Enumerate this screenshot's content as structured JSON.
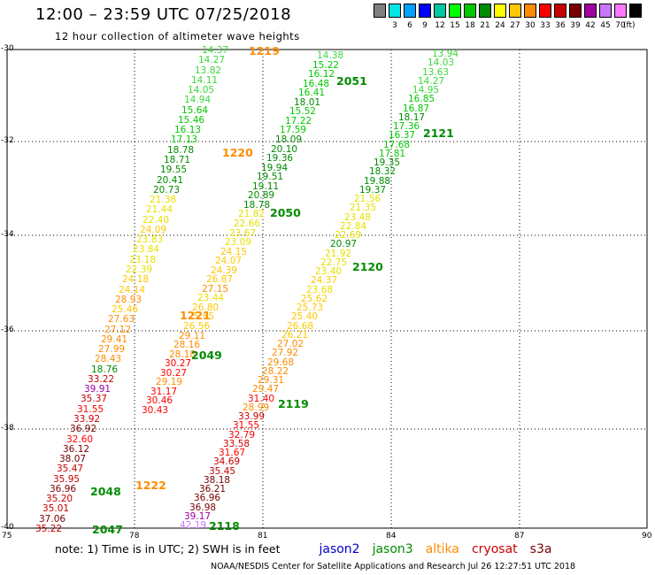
{
  "title": "12:00 – 23:59 UTC 07/25/2018",
  "subtitle": "12 hour collection of altimeter wave heights",
  "legend": {
    "unit": "(ft)",
    "bins": [
      {
        "label": "",
        "color": "#7f7f7f"
      },
      {
        "label": "3",
        "color": "#00e5e5"
      },
      {
        "label": "6",
        "color": "#00a0ff"
      },
      {
        "label": "9",
        "color": "#0000ff"
      },
      {
        "label": "12",
        "color": "#00c8a0"
      },
      {
        "label": "15",
        "color": "#00ff00"
      },
      {
        "label": "18",
        "color": "#00c800"
      },
      {
        "label": "21",
        "color": "#008c00"
      },
      {
        "label": "24",
        "color": "#ffff00"
      },
      {
        "label": "27",
        "color": "#ffc800"
      },
      {
        "label": "30",
        "color": "#ff8c00"
      },
      {
        "label": "33",
        "color": "#ff0000"
      },
      {
        "label": "36",
        "color": "#c80000"
      },
      {
        "label": "39",
        "color": "#780000"
      },
      {
        "label": "42",
        "color": "#a000a0"
      },
      {
        "label": "45",
        "color": "#c878ff"
      },
      {
        "label": "70",
        "color": "#ff78ff"
      },
      {
        "label": "",
        "color": "#000000"
      }
    ]
  },
  "axes": {
    "y_ticks": [
      "-30",
      "-32",
      "-34",
      "-36",
      "-38",
      "-40"
    ],
    "x_ticks": [
      "75",
      "78",
      "81",
      "84",
      "87",
      "90"
    ]
  },
  "passes": [
    {
      "id": "1219",
      "color": "#ff8c00"
    },
    {
      "id": "2051",
      "color": "#008c00"
    },
    {
      "id": "2121",
      "color": "#008c00"
    },
    {
      "id": "1220",
      "color": "#ff8c00"
    },
    {
      "id": "2050",
      "color": "#008c00"
    },
    {
      "id": "2120",
      "color": "#008c00"
    },
    {
      "id": "1221",
      "color": "#ff8c00"
    },
    {
      "id": "2049",
      "color": "#008c00"
    },
    {
      "id": "2119",
      "color": "#008c00"
    },
    {
      "id": "1222",
      "color": "#ff8c00"
    },
    {
      "id": "2048",
      "color": "#008c00"
    },
    {
      "id": "2047",
      "color": "#008c00"
    },
    {
      "id": "2118",
      "color": "#008c00"
    }
  ],
  "tracks": {
    "a": [
      "14.37",
      "14.27",
      "13.82",
      "14.11",
      "14.05",
      "14.94",
      "15.64",
      "15.46",
      "16.13",
      "17.13",
      "18.78",
      "18.71",
      "19.55",
      "20.41",
      "20.73",
      "21.38",
      "21.44",
      "22.40",
      "24.09",
      "23.83",
      "23.84",
      "23.18",
      "22.39",
      "24.18",
      "24.14",
      "28.93",
      "25.46",
      "27.63",
      "27.12",
      "29.41",
      "27.99",
      "28.43",
      "18.76",
      "33.22",
      "39.91",
      "35.37",
      "31.55",
      "33.92",
      "36.92",
      "32.60",
      "36.12",
      "38.07",
      "35.47",
      "35.95",
      "36.96",
      "35.20",
      "35.01",
      "37.06",
      "35.22"
    ],
    "b": [
      "14.38",
      "15.22",
      "16.12",
      "16.48",
      "16.41",
      "18.01",
      "15.52",
      "17.22",
      "17.59",
      "18.09",
      "20.10",
      "19.36",
      "19.94",
      "19.51",
      "19.11",
      "20.89",
      "18.78",
      "21.82",
      "22.66",
      "23.67",
      "23.09",
      "24.15",
      "24.07",
      "24.39",
      "26.87",
      "27.15",
      "23.44",
      "26.80",
      "25.85",
      "26.56",
      "29.11",
      "28.16",
      "28.18",
      "30.27",
      "30.27",
      "29.19",
      "31.17",
      "30.46",
      "30.43"
    ],
    "c": [
      "13.94",
      "14.03",
      "13.63",
      "14.27",
      "14.95",
      "16.85",
      "16.87",
      "18.17",
      "17.36",
      "16.37",
      "17.68",
      "17.81",
      "19.35",
      "18.32",
      "19.88",
      "19.37",
      "21.56",
      "21.35",
      "23.48",
      "22.84",
      "22.69",
      "20.97",
      "21.92",
      "22.75",
      "23.40",
      "24.37",
      "23.68",
      "25.62",
      "25.73",
      "25.40",
      "26.68",
      "26.21",
      "27.02",
      "27.92",
      "29.68",
      "28.22",
      "29.31",
      "29.47",
      "31.40",
      "28.99",
      "33.99",
      "31.55",
      "32.79",
      "33.58",
      "31.67",
      "34.69",
      "35.45",
      "38.18",
      "36.21",
      "36.96",
      "36.98",
      "39.17",
      "42.19"
    ]
  },
  "note": {
    "text": "note:  1) Time is in UTC;  2) SWH is in feet",
    "satellites": [
      {
        "name": "jason2",
        "color": "#0000c8"
      },
      {
        "name": "jason3",
        "color": "#008c00"
      },
      {
        "name": "altika",
        "color": "#ff8c00"
      },
      {
        "name": "cryosat",
        "color": "#c80000"
      },
      {
        "name": "s3a",
        "color": "#780000"
      }
    ]
  },
  "credit": "NOAA/NESDIS Center for Satellite Applications and Research     Jul 26 12:27:51 UTC 2018"
}
